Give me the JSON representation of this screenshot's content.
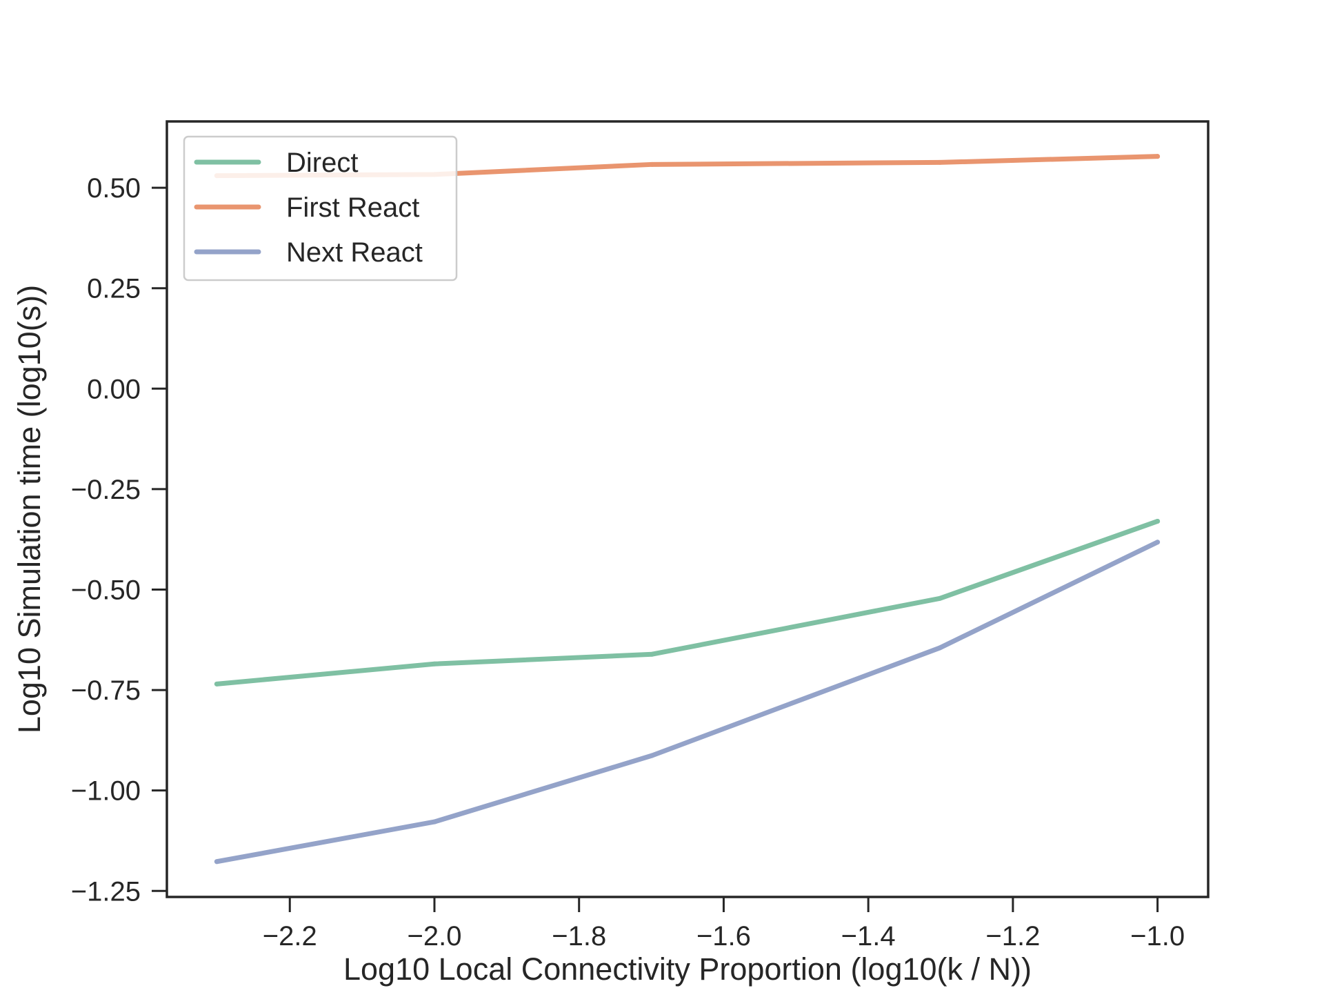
{
  "chart_data": {
    "type": "line",
    "title": "",
    "xlabel": "Log10 Local Connectivity Proportion (log10(k / N))",
    "ylabel": "Log10 Simulation time (log10(s))",
    "xlim": [
      -2.37,
      -0.93
    ],
    "ylim": [
      -1.265,
      0.665
    ],
    "x_ticks": [
      -2.2,
      -2.0,
      -1.8,
      -1.6,
      -1.4,
      -1.2,
      -1.0
    ],
    "x_tick_labels": [
      "−2.2",
      "−2.0",
      "−1.8",
      "−1.6",
      "−1.4",
      "−1.2",
      "−1.0"
    ],
    "y_ticks": [
      0.5,
      0.25,
      0.0,
      -0.25,
      -0.5,
      -0.75,
      -1.0,
      -1.25
    ],
    "y_tick_labels": [
      "0.50",
      "0.25",
      "0.00",
      "−0.25",
      "−0.50",
      "−0.75",
      "−1.00",
      "−1.25"
    ],
    "x": [
      -2.301,
      -2.0,
      -1.699,
      -1.301,
      -1.0
    ],
    "series": [
      {
        "name": "Direct",
        "color": "#7fc0a3",
        "values": [
          -0.735,
          -0.685,
          -0.661,
          -0.522,
          -0.33
        ]
      },
      {
        "name": "First React",
        "color": "#e9956f",
        "values": [
          0.53,
          0.533,
          0.558,
          0.563,
          0.578
        ]
      },
      {
        "name": "Next React",
        "color": "#94a3c9",
        "values": [
          -1.177,
          -1.078,
          -0.913,
          -0.645,
          -0.382
        ]
      }
    ],
    "grid": false,
    "legend_position": "top-left"
  }
}
